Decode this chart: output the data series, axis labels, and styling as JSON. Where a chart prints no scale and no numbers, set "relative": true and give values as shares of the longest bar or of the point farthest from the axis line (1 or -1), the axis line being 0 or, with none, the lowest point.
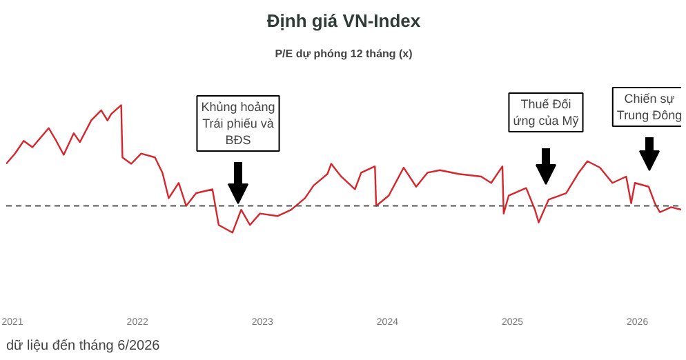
{
  "chart_data": {
    "type": "line",
    "title": "Định giá VN-Index",
    "subtitle": "P/E dự phóng 12 tháng (x)",
    "relative": true,
    "x": [
      2020.95,
      2021.02,
      2021.09,
      2021.16,
      2021.29,
      2021.35,
      2021.41,
      2021.49,
      2021.54,
      2021.63,
      2021.71,
      2021.76,
      2021.79,
      2021.87,
      2021.88,
      2021.95,
      2022.03,
      2022.14,
      2022.2,
      2022.25,
      2022.33,
      2022.39,
      2022.47,
      2022.6,
      2022.65,
      2022.76,
      2022.83,
      2022.9,
      2022.98,
      2023.12,
      2023.23,
      2023.34,
      2023.41,
      2023.52,
      2023.55,
      2023.63,
      2023.74,
      2023.79,
      2023.9,
      2023.91,
      2024.01,
      2024.13,
      2024.23,
      2024.32,
      2024.42,
      2024.57,
      2024.75,
      2024.83,
      2024.92,
      2024.93,
      2024.97,
      2025.11,
      2025.18,
      2025.21,
      2025.29,
      2025.43,
      2025.53,
      2025.6,
      2025.7,
      2025.8,
      2025.91,
      2025.95,
      2025.98,
      2026.09,
      2026.14,
      2026.18,
      2026.27,
      2026.35
    ],
    "series": [
      {
        "color": "#d7262b",
        "values": [
          0.54,
          0.62,
          0.72,
          0.67,
          0.82,
          0.72,
          0.61,
          0.78,
          0.71,
          0.88,
          0.96,
          0.88,
          0.93,
          1.0,
          0.59,
          0.54,
          0.62,
          0.59,
          0.47,
          0.27,
          0.39,
          0.21,
          0.31,
          0.34,
          0.06,
          0.0,
          0.18,
          0.06,
          0.15,
          0.13,
          0.18,
          0.27,
          0.37,
          0.46,
          0.54,
          0.44,
          0.34,
          0.47,
          0.52,
          0.21,
          0.29,
          0.51,
          0.36,
          0.47,
          0.49,
          0.46,
          0.44,
          0.39,
          0.52,
          0.15,
          0.29,
          0.35,
          0.18,
          0.08,
          0.26,
          0.31,
          0.47,
          0.56,
          0.51,
          0.39,
          0.44,
          0.23,
          0.39,
          0.36,
          0.23,
          0.16,
          0.2,
          0.18
        ]
      }
    ],
    "xlim": [
      2020.95,
      2026.35
    ],
    "xticks": [
      2021,
      2022,
      2023,
      2024,
      2025,
      2026
    ],
    "ref_lines": [
      {
        "axis": "y",
        "value": 0.21,
        "color": "#555555",
        "line_style": "dashed"
      }
    ],
    "marker": "none",
    "line_style": "solid",
    "annotations": [
      "Khủng hoảng\nTrái phiếu và\nBĐS",
      "Thuế Đối\nứng của Mỹ",
      "Chiến sự\nTrung Đông",
      "dữ liệu đến tháng 6/2026"
    ]
  }
}
